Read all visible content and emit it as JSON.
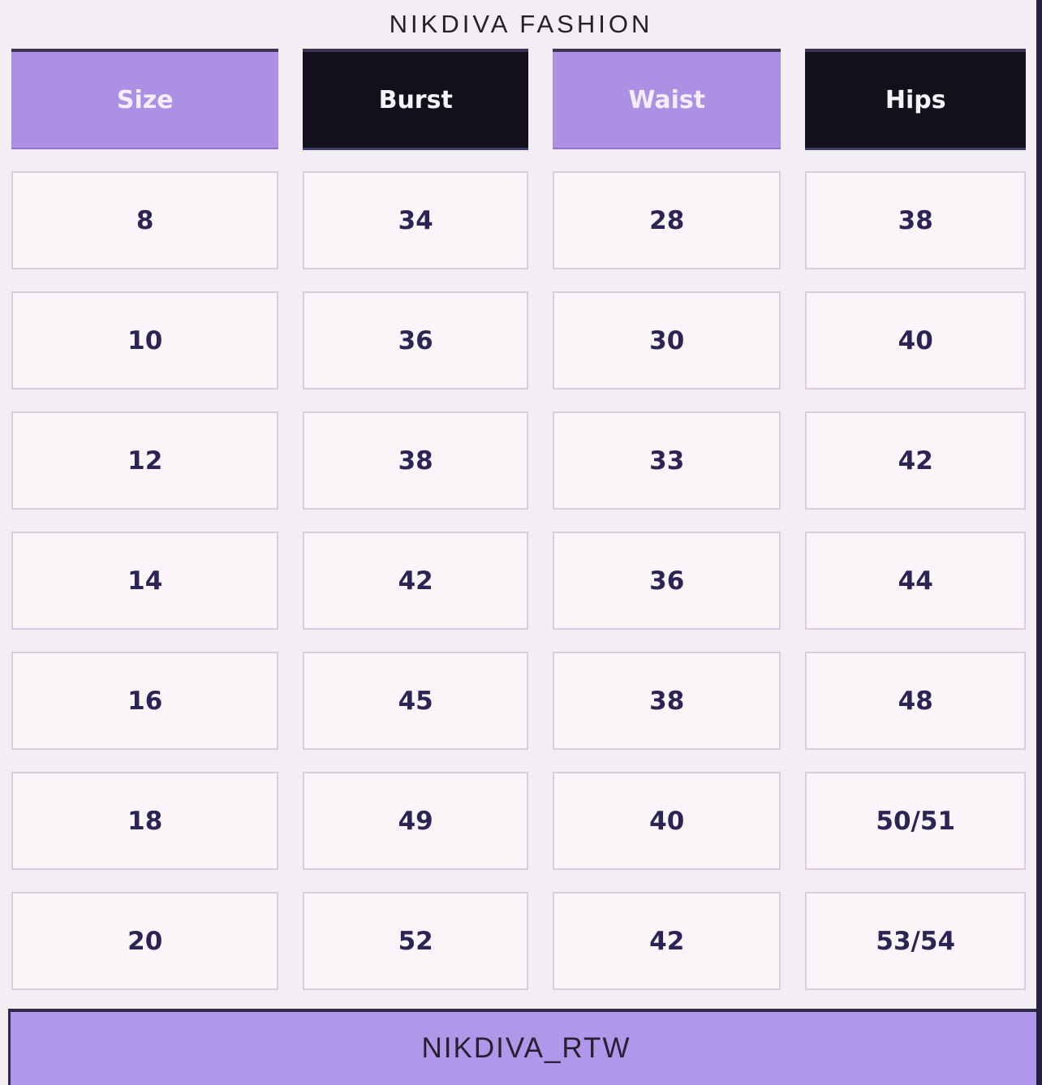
{
  "title": "NIKDIVA FASHION",
  "footer": "NIKDIVA_RTW",
  "table": {
    "headers": [
      {
        "label": "Size",
        "variant": "purple"
      },
      {
        "label": "Burst",
        "variant": "black"
      },
      {
        "label": "Waist",
        "variant": "purple"
      },
      {
        "label": "Hips",
        "variant": "black"
      }
    ],
    "rows": [
      [
        "8",
        "34",
        "28",
        "38"
      ],
      [
        "10",
        "36",
        "30",
        "40"
      ],
      [
        "12",
        "38",
        "33",
        "42"
      ],
      [
        "14",
        "42",
        "36",
        "44"
      ],
      [
        "16",
        "45",
        "38",
        "48"
      ],
      [
        "18",
        "49",
        "40",
        "50/51"
      ],
      [
        "20",
        "52",
        "42",
        "53/54"
      ]
    ]
  },
  "chart_data": {
    "type": "table",
    "title": "NIKDIVA FASHION",
    "columns": [
      "Size",
      "Burst",
      "Waist",
      "Hips"
    ],
    "rows": [
      [
        8,
        34,
        28,
        "38"
      ],
      [
        10,
        36,
        30,
        "40"
      ],
      [
        12,
        38,
        33,
        "42"
      ],
      [
        14,
        42,
        36,
        "44"
      ],
      [
        16,
        45,
        38,
        "48"
      ],
      [
        18,
        49,
        40,
        "50/51"
      ],
      [
        20,
        52,
        42,
        "53/54"
      ]
    ],
    "footer": "NIKDIVA_RTW"
  },
  "colors": {
    "header_purple": "#ab90e4",
    "header_black": "#14101b",
    "footer_purple": "#b197e9",
    "page_background": "#f3edf4",
    "cell_background": "#fbf5fa",
    "cell_border": "#d8cede",
    "number_text": "#2b2553",
    "edge_strip": "#24203f"
  }
}
